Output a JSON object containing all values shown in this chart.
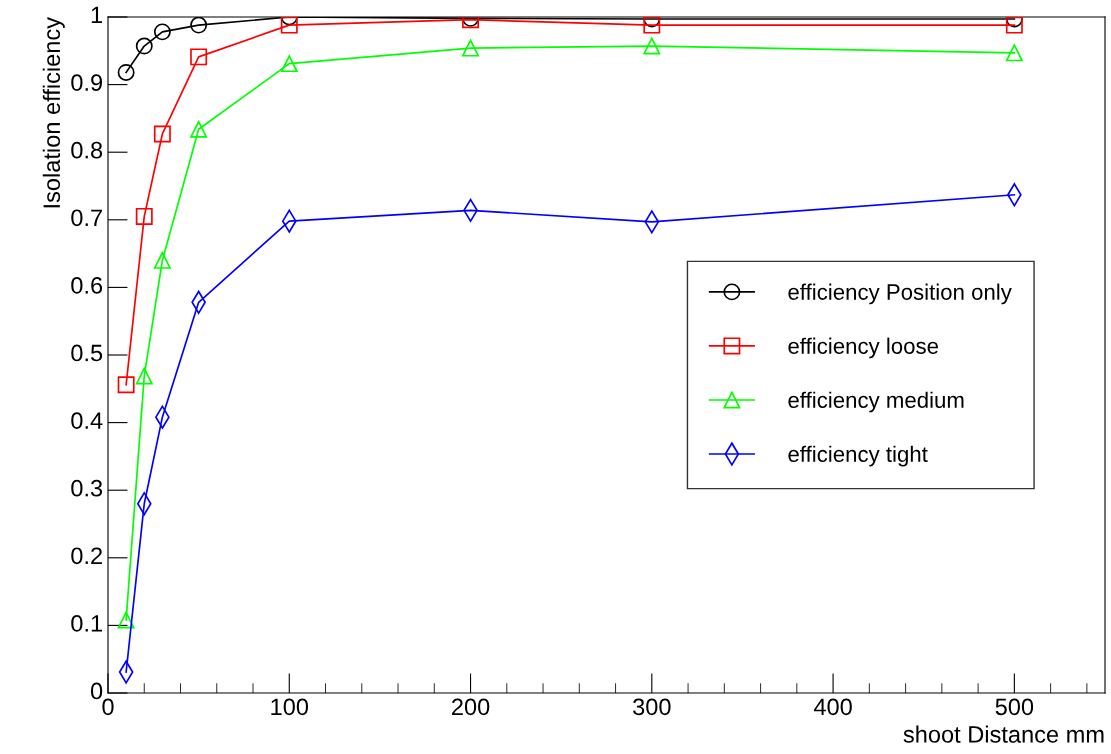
{
  "chart_data": {
    "type": "line",
    "xlabel": "shoot Distance mm",
    "ylabel": "Isolation efficiency",
    "x": [
      10,
      20,
      30,
      50,
      100,
      200,
      300,
      500
    ],
    "series": [
      {
        "name": "efficiency Position only",
        "color": "#000000",
        "marker": "circle",
        "values": [
          0.918,
          0.957,
          0.978,
          0.988,
          1.0,
          0.998,
          0.997,
          0.997
        ]
      },
      {
        "name": "efficiency loose",
        "color": "#ff0000",
        "marker": "square",
        "values": [
          0.456,
          0.705,
          0.827,
          0.941,
          0.988,
          0.996,
          0.988,
          0.988
        ]
      },
      {
        "name": "efficiency medium",
        "color": "#00ff00",
        "marker": "triangle",
        "values": [
          0.108,
          0.469,
          0.64,
          0.834,
          0.931,
          0.954,
          0.957,
          0.947
        ]
      },
      {
        "name": "efficiency tight",
        "color": "#0000ff",
        "marker": "diamond",
        "values": [
          0.031,
          0.28,
          0.408,
          0.578,
          0.698,
          0.714,
          0.697,
          0.737
        ]
      }
    ],
    "xlim": [
      0,
      550
    ],
    "xticks": [
      0,
      100,
      200,
      300,
      400,
      500
    ],
    "ylim": [
      0,
      1
    ],
    "yticks": [
      0,
      0.1,
      0.2,
      0.3,
      0.4,
      0.5,
      0.6,
      0.7,
      0.8,
      0.9,
      1
    ],
    "grid": false,
    "legend": "right",
    "line_style": "solid"
  }
}
